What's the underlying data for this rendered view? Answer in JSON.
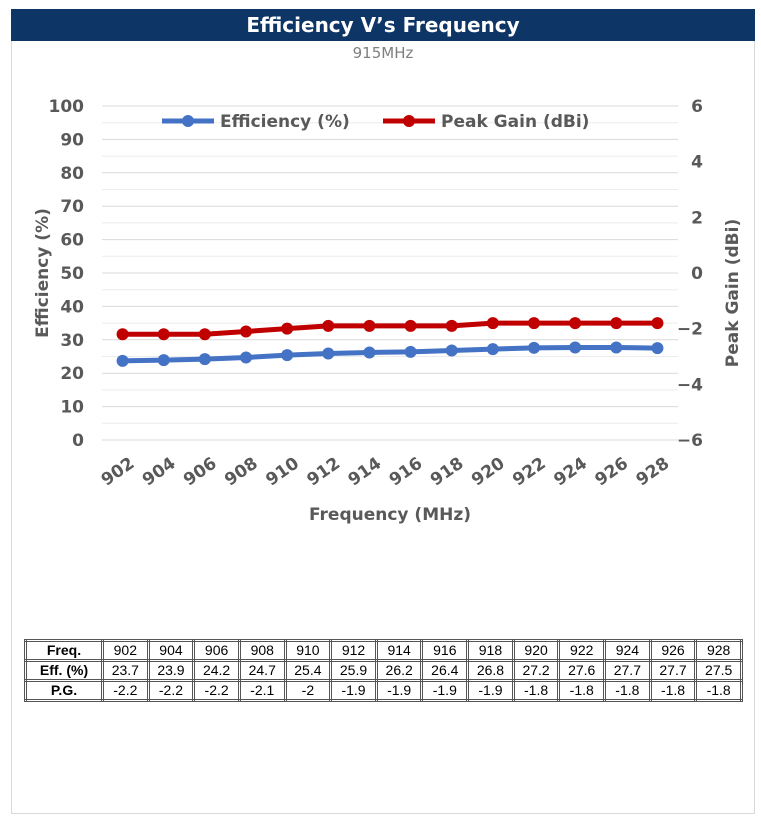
{
  "header": {
    "title": "Efficiency V’s Frequency",
    "subtitle": "915MHz"
  },
  "colors": {
    "title_bar": "#0d3565",
    "efficiency": "#4472c4",
    "peak_gain": "#c00000"
  },
  "chart_data": {
    "type": "line",
    "x": [
      902,
      904,
      906,
      908,
      910,
      912,
      914,
      916,
      918,
      920,
      922,
      924,
      926,
      928
    ],
    "series": [
      {
        "name": "Efficiency (%)",
        "axis": "left",
        "values": [
          23.7,
          23.9,
          24.2,
          24.7,
          25.4,
          25.9,
          26.2,
          26.4,
          26.8,
          27.2,
          27.6,
          27.7,
          27.7,
          27.5
        ]
      },
      {
        "name": "Peak Gain (dBi)",
        "axis": "right",
        "values": [
          -2.2,
          -2.2,
          -2.2,
          -2.1,
          -2.0,
          -1.9,
          -1.9,
          -1.9,
          -1.9,
          -1.8,
          -1.8,
          -1.8,
          -1.8,
          -1.8
        ]
      }
    ],
    "xlabel": "Frequency (MHz)",
    "ylabel": "Efficiency  (%)",
    "y2label": "Peak Gain (dBi)",
    "ylim": [
      0,
      100
    ],
    "y2lim": [
      -6,
      6
    ],
    "yticks": [
      0,
      10,
      20,
      30,
      40,
      50,
      60,
      70,
      80,
      90,
      100
    ],
    "y2ticks": [
      -6,
      -4,
      -2,
      0,
      2,
      4,
      6
    ],
    "legend_position": "top",
    "grid": true
  },
  "table": {
    "rows": [
      {
        "head": "Freq.",
        "cells": [
          "902",
          "904",
          "906",
          "908",
          "910",
          "912",
          "914",
          "916",
          "918",
          "920",
          "922",
          "924",
          "926",
          "928"
        ]
      },
      {
        "head": "Eff. (%)",
        "cells": [
          "23.7",
          "23.9",
          "24.2",
          "24.7",
          "25.4",
          "25.9",
          "26.2",
          "26.4",
          "26.8",
          "27.2",
          "27.6",
          "27.7",
          "27.7",
          "27.5"
        ]
      },
      {
        "head": "P.G.",
        "cells": [
          "-2.2",
          "-2.2",
          "-2.2",
          "-2.1",
          "-2",
          "-1.9",
          "-1.9",
          "-1.9",
          "-1.9",
          "-1.8",
          "-1.8",
          "-1.8",
          "-1.8",
          "-1.8"
        ]
      }
    ]
  }
}
